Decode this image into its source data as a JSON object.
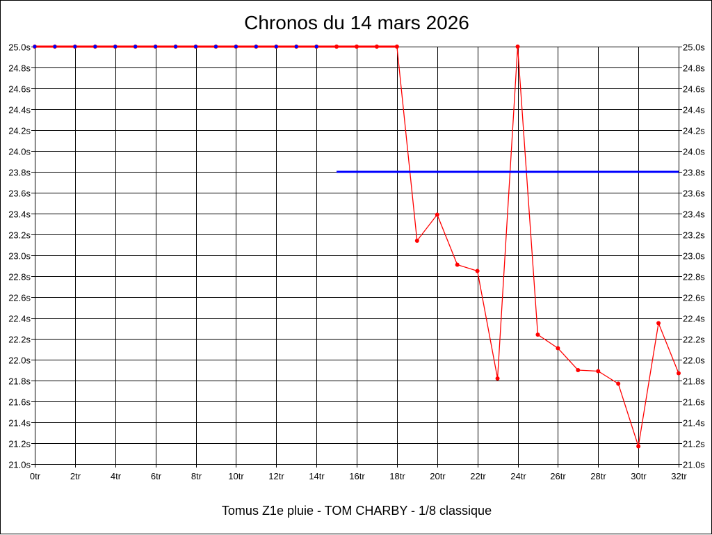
{
  "chart_data": {
    "type": "line",
    "title": "Chronos du 14 mars 2026",
    "subtitle": "Tomus Z1e pluie - TOM CHARBY - 1/8 classique",
    "xlim": [
      0,
      32
    ],
    "ylim": [
      21.0,
      25.0
    ],
    "x_ticks": [
      "0tr",
      "2tr",
      "4tr",
      "6tr",
      "8tr",
      "10tr",
      "12tr",
      "14tr",
      "16tr",
      "18tr",
      "20tr",
      "22tr",
      "24tr",
      "26tr",
      "28tr",
      "30tr",
      "32tr"
    ],
    "y_ticks": [
      "21.0s",
      "21.2s",
      "21.4s",
      "21.6s",
      "21.8s",
      "22.0s",
      "22.2s",
      "22.4s",
      "22.6s",
      "22.8s",
      "23.0s",
      "23.2s",
      "23.4s",
      "23.6s",
      "23.8s",
      "24.0s",
      "24.2s",
      "24.4s",
      "24.6s",
      "24.8s",
      "25.0s"
    ],
    "grid": true,
    "series": [
      {
        "color": "#ff0000",
        "x": [
          0,
          1,
          2,
          3,
          4,
          5,
          6,
          7,
          8,
          9,
          10,
          11,
          12,
          13,
          14,
          15,
          16,
          17,
          18,
          19,
          20,
          21,
          22,
          23,
          24,
          25,
          26,
          27,
          28,
          29,
          30,
          31,
          32
        ],
        "values": [
          25.0,
          25.0,
          25.0,
          25.0,
          25.0,
          25.0,
          25.0,
          25.0,
          25.0,
          25.0,
          25.0,
          25.0,
          25.0,
          25.0,
          25.0,
          25.0,
          25.0,
          25.0,
          25.0,
          23.14,
          23.39,
          22.91,
          22.85,
          21.82,
          25.0,
          22.24,
          22.11,
          21.9,
          21.89,
          21.77,
          21.17,
          22.35,
          21.87
        ]
      },
      {
        "color": "#0000ff",
        "x": [
          0,
          1,
          2,
          3,
          4,
          5,
          6,
          7,
          8,
          9,
          10,
          11,
          12,
          13,
          14
        ],
        "values": [
          25.0,
          25.0,
          25.0,
          25.0,
          25.0,
          25.0,
          25.0,
          25.0,
          25.0,
          25.0,
          25.0,
          25.0,
          25.0,
          25.0,
          25.0
        ]
      },
      {
        "color": "#0000ff",
        "x": [
          15,
          32
        ],
        "values": [
          23.8,
          23.8
        ]
      }
    ]
  }
}
